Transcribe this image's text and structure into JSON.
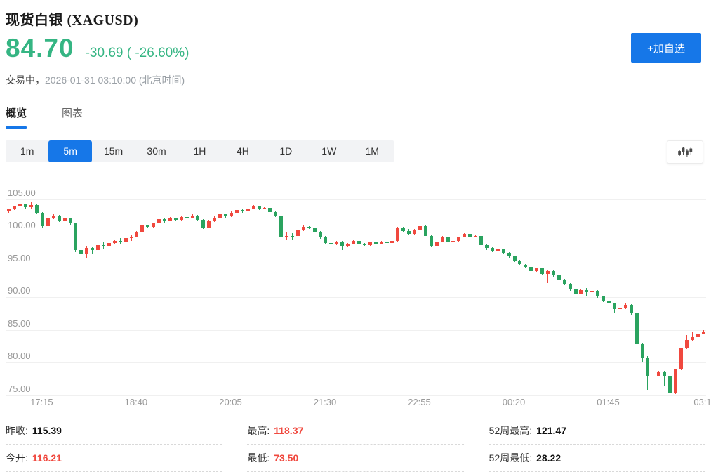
{
  "colors": {
    "up_red": "#f0483e",
    "down_green": "#2aa35f",
    "accent_blue": "#1677e8",
    "price_green": "#35b583"
  },
  "header": {
    "title": "现货白银 (XAGUSD)",
    "price": "84.70",
    "change": "-30.69 ( -26.60%)",
    "status_label": "交易中，",
    "timestamp": "2026-01-31 03:10:00  (北京时间)",
    "watchlist_button": "+加自选"
  },
  "tabs": [
    {
      "label": "概览",
      "active": true
    },
    {
      "label": "图表",
      "active": false
    }
  ],
  "timeframes": {
    "options": [
      "1m",
      "5m",
      "15m",
      "30m",
      "1H",
      "4H",
      "1D",
      "1W",
      "1M"
    ],
    "active": "5m"
  },
  "chart_data": {
    "type": "candlestick",
    "interval": "5m",
    "symbol": "XAGUSD",
    "up_color_meaning": "red = rising, green = falling (CN convention)",
    "ylim": [
      73.5,
      107.7
    ],
    "y_gridlines": [
      105,
      100,
      95,
      90,
      85,
      80,
      75
    ],
    "y_tick_labels": [
      "105.00",
      "100.00",
      "95.00",
      "90.00",
      "85.00",
      "80.00",
      "75.00"
    ],
    "x_tick_labels": [
      "17:15",
      "18:40",
      "20:05",
      "21:30",
      "22:55",
      "00:20",
      "01:45",
      "03:1"
    ],
    "x_tick_indices": [
      6,
      23,
      40,
      57,
      74,
      91,
      108,
      125
    ],
    "candles_format": [
      "time",
      "open",
      "high",
      "low",
      "close"
    ],
    "candles": [
      [
        "16:45",
        103.1,
        103.5,
        102.9,
        103.4
      ],
      [
        "16:50",
        103.4,
        104.0,
        103.3,
        103.9
      ],
      [
        "16:55",
        103.9,
        104.4,
        103.8,
        104.2
      ],
      [
        "17:00",
        104.2,
        104.3,
        103.6,
        103.8
      ],
      [
        "17:05",
        103.8,
        104.5,
        103.6,
        104.1
      ],
      [
        "17:10",
        104.1,
        104.2,
        102.7,
        102.9
      ],
      [
        "17:15",
        102.9,
        103.0,
        100.6,
        100.9
      ],
      [
        "17:20",
        100.9,
        102.3,
        100.8,
        102.1
      ],
      [
        "17:25",
        102.1,
        102.7,
        101.9,
        102.5
      ],
      [
        "17:30",
        102.5,
        102.6,
        101.5,
        101.7
      ],
      [
        "17:35",
        101.7,
        102.4,
        101.3,
        102.0
      ],
      [
        "17:40",
        102.0,
        102.1,
        101.1,
        101.3
      ],
      [
        "17:45",
        101.3,
        101.4,
        96.9,
        97.2
      ],
      [
        "17:50",
        97.2,
        97.4,
        95.5,
        96.7
      ],
      [
        "17:55",
        96.7,
        97.8,
        96.0,
        97.5
      ],
      [
        "18:00",
        97.5,
        97.6,
        96.7,
        97.2
      ],
      [
        "18:05",
        97.2,
        98.2,
        96.5,
        98.0
      ],
      [
        "18:10",
        98.0,
        98.4,
        97.4,
        97.8
      ],
      [
        "18:15",
        97.8,
        98.5,
        97.7,
        98.3
      ],
      [
        "18:20",
        98.3,
        98.8,
        98.2,
        98.6
      ],
      [
        "18:25",
        98.6,
        99.0,
        98.2,
        98.4
      ],
      [
        "18:30",
        98.4,
        99.2,
        98.3,
        99.0
      ],
      [
        "18:35",
        99.0,
        99.5,
        98.6,
        99.3
      ],
      [
        "18:40",
        99.3,
        100.1,
        99.2,
        99.9
      ],
      [
        "18:45",
        99.9,
        101.1,
        99.8,
        101.0
      ],
      [
        "18:50",
        101.0,
        101.1,
        100.5,
        100.7
      ],
      [
        "18:55",
        100.7,
        101.4,
        100.6,
        101.3
      ],
      [
        "19:00",
        101.3,
        102.0,
        101.2,
        101.9
      ],
      [
        "19:05",
        101.9,
        102.2,
        101.4,
        101.7
      ],
      [
        "19:10",
        101.7,
        102.3,
        101.6,
        102.1
      ],
      [
        "19:15",
        102.1,
        102.2,
        101.6,
        101.8
      ],
      [
        "19:20",
        101.8,
        102.5,
        101.7,
        102.3
      ],
      [
        "19:25",
        102.3,
        102.6,
        102.0,
        102.2
      ],
      [
        "19:30",
        102.2,
        102.7,
        102.1,
        102.5
      ],
      [
        "19:35",
        102.5,
        102.6,
        101.6,
        101.8
      ],
      [
        "19:40",
        101.8,
        101.9,
        100.4,
        100.6
      ],
      [
        "19:45",
        100.6,
        101.8,
        100.5,
        101.6
      ],
      [
        "19:50",
        101.6,
        102.4,
        101.5,
        102.2
      ],
      [
        "19:55",
        102.2,
        102.9,
        102.1,
        102.7
      ],
      [
        "20:00",
        102.7,
        102.8,
        102.2,
        102.4
      ],
      [
        "20:05",
        102.4,
        103.1,
        102.3,
        102.9
      ],
      [
        "20:10",
        102.9,
        103.5,
        102.8,
        103.3
      ],
      [
        "20:15",
        103.3,
        103.6,
        102.9,
        103.1
      ],
      [
        "20:20",
        103.1,
        103.8,
        103.0,
        103.6
      ],
      [
        "20:25",
        103.6,
        104.1,
        103.5,
        103.9
      ],
      [
        "20:30",
        103.9,
        104.0,
        103.3,
        103.5
      ],
      [
        "20:35",
        103.5,
        103.8,
        103.4,
        103.7
      ],
      [
        "20:40",
        103.7,
        103.8,
        102.8,
        103.0
      ],
      [
        "20:45",
        103.0,
        103.1,
        102.3,
        102.5
      ],
      [
        "20:50",
        102.5,
        102.6,
        98.9,
        99.2
      ],
      [
        "20:55",
        99.2,
        99.9,
        98.7,
        99.4
      ],
      [
        "21:00",
        99.4,
        99.8,
        98.8,
        99.3
      ],
      [
        "21:05",
        99.3,
        100.3,
        99.2,
        100.2
      ],
      [
        "21:10",
        100.2,
        101.0,
        100.1,
        100.8
      ],
      [
        "21:15",
        100.8,
        100.9,
        100.4,
        100.5
      ],
      [
        "21:20",
        100.5,
        100.6,
        99.9,
        100.0
      ],
      [
        "21:25",
        100.0,
        100.1,
        98.9,
        99.3
      ],
      [
        "21:30",
        99.3,
        99.4,
        98.1,
        98.3
      ],
      [
        "21:35",
        98.3,
        98.7,
        97.6,
        98.1
      ],
      [
        "21:40",
        98.1,
        98.6,
        98.0,
        98.5
      ],
      [
        "21:45",
        98.5,
        98.6,
        97.2,
        97.8
      ],
      [
        "21:50",
        97.8,
        98.3,
        97.7,
        98.2
      ],
      [
        "21:55",
        98.2,
        98.7,
        98.1,
        98.6
      ],
      [
        "22:00",
        98.6,
        98.7,
        98.1,
        98.2
      ],
      [
        "22:05",
        98.2,
        98.3,
        97.8,
        98.0
      ],
      [
        "22:10",
        98.0,
        98.5,
        97.9,
        98.4
      ],
      [
        "22:15",
        98.4,
        98.6,
        98.0,
        98.2
      ],
      [
        "22:20",
        98.2,
        98.6,
        98.1,
        98.5
      ],
      [
        "22:25",
        98.5,
        98.6,
        98.1,
        98.3
      ],
      [
        "22:30",
        98.3,
        98.7,
        98.2,
        98.6
      ],
      [
        "22:35",
        98.6,
        100.7,
        98.5,
        100.6
      ],
      [
        "22:40",
        100.6,
        100.7,
        100.0,
        100.1
      ],
      [
        "22:45",
        100.1,
        100.4,
        99.5,
        99.7
      ],
      [
        "22:50",
        99.7,
        100.4,
        99.6,
        100.3
      ],
      [
        "22:55",
        100.3,
        101.1,
        100.2,
        100.9
      ],
      [
        "23:00",
        100.9,
        101.0,
        99.3,
        99.4
      ],
      [
        "23:05",
        99.4,
        99.5,
        97.7,
        97.9
      ],
      [
        "23:10",
        97.9,
        98.6,
        97.4,
        98.5
      ],
      [
        "23:15",
        98.5,
        99.4,
        98.4,
        99.3
      ],
      [
        "23:20",
        99.3,
        99.4,
        98.3,
        98.5
      ],
      [
        "23:25",
        98.5,
        99.0,
        98.2,
        98.6
      ],
      [
        "23:30",
        98.6,
        99.3,
        98.5,
        99.2
      ],
      [
        "23:35",
        99.2,
        99.8,
        99.1,
        99.7
      ],
      [
        "23:40",
        99.7,
        100.1,
        99.1,
        99.2
      ],
      [
        "23:45",
        99.2,
        99.6,
        99.1,
        99.4
      ],
      [
        "23:50",
        99.4,
        99.5,
        97.9,
        98.0
      ],
      [
        "23:55",
        98.0,
        98.2,
        97.2,
        97.5
      ],
      [
        "00:00",
        97.5,
        97.6,
        96.9,
        97.1
      ],
      [
        "00:05",
        97.1,
        98.0,
        96.6,
        97.3
      ],
      [
        "00:10",
        97.3,
        97.4,
        96.6,
        96.8
      ],
      [
        "00:15",
        96.8,
        96.9,
        96.0,
        96.2
      ],
      [
        "00:20",
        96.2,
        96.3,
        95.4,
        95.6
      ],
      [
        "00:25",
        95.6,
        95.7,
        94.8,
        95.0
      ],
      [
        "00:30",
        95.0,
        95.1,
        94.4,
        94.6
      ],
      [
        "00:35",
        94.6,
        94.7,
        93.8,
        94.0
      ],
      [
        "00:40",
        94.0,
        94.5,
        93.9,
        94.4
      ],
      [
        "00:45",
        94.4,
        94.5,
        93.3,
        93.5
      ],
      [
        "00:50",
        93.5,
        94.1,
        92.1,
        94.0
      ],
      [
        "00:55",
        94.0,
        94.1,
        93.1,
        93.3
      ],
      [
        "01:00",
        93.3,
        93.4,
        92.5,
        92.7
      ],
      [
        "01:05",
        92.7,
        92.8,
        91.8,
        92.0
      ],
      [
        "01:10",
        92.0,
        92.1,
        91.0,
        91.2
      ],
      [
        "01:15",
        91.2,
        91.3,
        90.0,
        90.5
      ],
      [
        "01:20",
        90.5,
        91.2,
        90.4,
        91.1
      ],
      [
        "01:25",
        91.1,
        91.4,
        90.2,
        90.8
      ],
      [
        "01:30",
        90.8,
        91.4,
        90.7,
        91.0
      ],
      [
        "01:35",
        91.0,
        91.1,
        89.9,
        90.1
      ],
      [
        "01:40",
        90.1,
        90.2,
        89.2,
        89.4
      ],
      [
        "01:45",
        89.4,
        89.5,
        88.8,
        89.0
      ],
      [
        "01:50",
        89.0,
        89.1,
        87.6,
        88.2
      ],
      [
        "01:55",
        88.2,
        89.0,
        87.5,
        88.3
      ],
      [
        "02:00",
        88.3,
        89.0,
        88.2,
        88.8
      ],
      [
        "02:05",
        88.8,
        88.9,
        87.3,
        87.5
      ],
      [
        "02:10",
        87.5,
        87.6,
        82.4,
        82.8
      ],
      [
        "02:15",
        82.8,
        82.9,
        80.1,
        80.6
      ],
      [
        "02:20",
        80.6,
        81.0,
        75.8,
        77.8
      ],
      [
        "02:25",
        77.8,
        79.2,
        77.0,
        78.0
      ],
      [
        "02:30",
        78.0,
        78.7,
        77.9,
        78.6
      ],
      [
        "02:35",
        78.6,
        78.7,
        76.4,
        77.8
      ],
      [
        "02:40",
        77.8,
        77.9,
        73.5,
        75.3
      ],
      [
        "02:45",
        75.3,
        79.0,
        75.2,
        78.9
      ],
      [
        "02:50",
        78.9,
        82.2,
        78.8,
        82.1
      ],
      [
        "02:55",
        82.1,
        84.2,
        82.0,
        83.4
      ],
      [
        "03:00",
        83.4,
        84.7,
        83.2,
        83.9
      ],
      [
        "03:05",
        83.9,
        84.5,
        82.7,
        84.4
      ],
      [
        "03:10",
        84.4,
        85.0,
        84.3,
        84.7
      ]
    ]
  },
  "stats": {
    "columns": [
      [
        {
          "label": "昨收:",
          "value": "115.39",
          "red": false
        },
        {
          "label": "今开:",
          "value": "116.21",
          "red": true
        }
      ],
      [
        {
          "label": "最高:",
          "value": "118.37",
          "red": true
        },
        {
          "label": "最低:",
          "value": "73.50",
          "red": true
        }
      ],
      [
        {
          "label": "52周最高:",
          "value": "121.47",
          "red": false
        },
        {
          "label": "52周最低:",
          "value": "28.22",
          "red": false
        }
      ]
    ]
  }
}
